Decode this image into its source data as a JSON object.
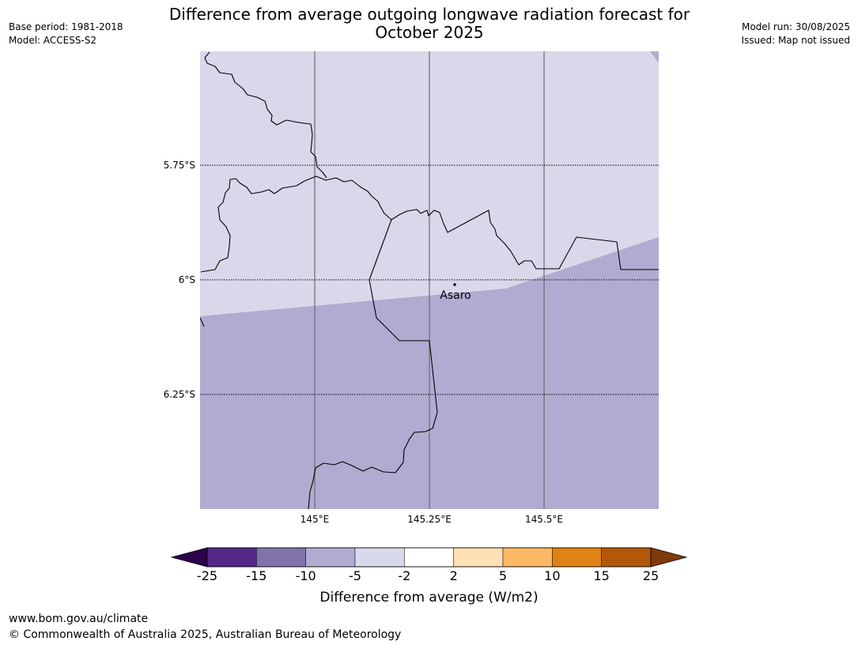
{
  "title": "Difference from average outgoing longwave radiation forecast for October 2025",
  "meta_left": {
    "base_period": "Base period: 1981-2018",
    "model": "Model: ACCESS-S2"
  },
  "meta_right": {
    "model_run": "Model run: 30/08/2025",
    "issued": "Issued: Map not issued"
  },
  "map": {
    "lat_ticks": [
      "5.75°S",
      "6°S",
      "6.25°S"
    ],
    "lon_ticks": [
      "145°E",
      "145.25°E",
      "145.5°E"
    ],
    "place_name": "Asaro",
    "colors": {
      "light_band": "#d8d8ea",
      "dark_band": "#b1abd1",
      "border": "#000000",
      "grid": "#666666"
    }
  },
  "colorbar": {
    "title": "Difference from average (W/m2)",
    "labels": [
      "-25",
      "-15",
      "-10",
      "-5",
      "-2",
      "2",
      "5",
      "10",
      "15",
      "25"
    ],
    "colors": [
      "#542788",
      "#8073ac",
      "#b2abd2",
      "#d8daeb",
      "#ffffff",
      "#fee0b6",
      "#fdb863",
      "#e08214",
      "#b35806"
    ],
    "extend_low_color": "#2d004b",
    "extend_high_color": "#7f3b08"
  },
  "footer": {
    "url": "www.bom.gov.au/climate",
    "copyright": "© Commonwealth of Australia 2025, Australian Bureau of Meteorology"
  }
}
